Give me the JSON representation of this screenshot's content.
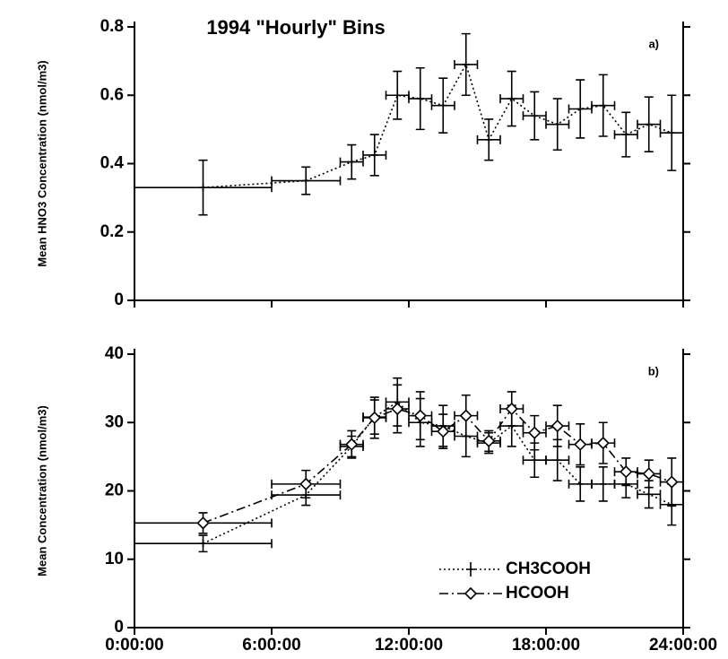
{
  "chart_data": [
    {
      "type": "line",
      "title": "1994 \"Hourly\" Bins",
      "panel_label": "a)",
      "y_label": "Mean HNO3 Concentration (nmol/m3)",
      "x": [
        3,
        7.5,
        9.5,
        10.5,
        11.5,
        12.5,
        13.5,
        14.5,
        15.5,
        16.5,
        17.5,
        18.5,
        19.5,
        20.5,
        21.5,
        22.5,
        23.5
      ],
      "xerr": [
        3,
        1.5,
        0.5,
        0.5,
        0.5,
        0.5,
        0.5,
        0.5,
        0.5,
        0.5,
        0.5,
        0.5,
        0.5,
        0.5,
        0.5,
        0.5,
        0.5
      ],
      "series": [
        {
          "color": "#000000",
          "marker": "plus",
          "dash": "2,3",
          "values": [
            0.33,
            0.35,
            0.405,
            0.425,
            0.6,
            0.59,
            0.57,
            0.69,
            0.47,
            0.59,
            0.54,
            0.515,
            0.56,
            0.57,
            0.485,
            0.515,
            0.49
          ],
          "errors": [
            0.08,
            0.04,
            0.05,
            0.06,
            0.07,
            0.09,
            0.08,
            0.09,
            0.06,
            0.08,
            0.07,
            0.075,
            0.085,
            0.09,
            0.065,
            0.08,
            0.11
          ]
        }
      ],
      "xlim": [
        0,
        24
      ],
      "xticks": [
        {
          "value": 0,
          "label": "0:00:00"
        },
        {
          "value": 6,
          "label": "6:00:00"
        },
        {
          "value": 12,
          "label": "12:00:00"
        },
        {
          "value": 18,
          "label": "18:00:00"
        },
        {
          "value": 24,
          "label": "24:00:00"
        }
      ],
      "ylim": [
        0,
        0.8
      ],
      "yticks": [
        0,
        0.2,
        0.4,
        0.6,
        0.8
      ]
    },
    {
      "type": "line",
      "panel_label": "b)",
      "y_label": "Mean Concentration (nmol/m3)",
      "x": [
        3,
        7.5,
        9.5,
        10.5,
        11.5,
        12.5,
        13.5,
        14.5,
        15.5,
        16.5,
        17.5,
        18.5,
        19.5,
        20.5,
        21.5,
        22.5,
        23.5
      ],
      "xerr": [
        3,
        1.5,
        0.5,
        0.5,
        0.5,
        0.5,
        0.5,
        0.5,
        0.5,
        0.5,
        0.5,
        0.5,
        0.5,
        0.5,
        0.5,
        0.5,
        0.5
      ],
      "series": [
        {
          "name": "CH3COOH",
          "color": "#000000",
          "marker": "plus",
          "dash": "2,3",
          "values": [
            12.3,
            19.4,
            26.5,
            30.8,
            33,
            30,
            29.5,
            28,
            27,
            29.5,
            24.5,
            24.5,
            21,
            21,
            21,
            19.5,
            18
          ],
          "errors": [
            1.2,
            1.5,
            1.5,
            2.5,
            3.5,
            3.5,
            3,
            3,
            1.5,
            3,
            2.5,
            3,
            2.5,
            2.5,
            2,
            2,
            3
          ]
        },
        {
          "name": "HCOOH",
          "color": "#000000",
          "marker": "diamond",
          "dash": "10,4,2,4",
          "values": [
            15.3,
            21,
            26.8,
            30.7,
            32,
            31,
            28.7,
            31,
            27.3,
            32,
            28.5,
            29.5,
            26.8,
            27,
            22.8,
            22.5,
            21.3
          ],
          "errors": [
            1.5,
            2,
            2,
            3,
            3.5,
            3.5,
            2.5,
            3,
            1.5,
            2.5,
            2.5,
            3,
            3,
            3,
            2,
            2,
            3.5
          ]
        }
      ],
      "xlim": [
        0,
        24
      ],
      "xticks": [
        {
          "value": 0,
          "label": "0:00:00"
        },
        {
          "value": 6,
          "label": "6:00:00"
        },
        {
          "value": 12,
          "label": "12:00:00"
        },
        {
          "value": 18,
          "label": "18:00:00"
        },
        {
          "value": 24,
          "label": "24:00:00"
        }
      ],
      "ylim": [
        0,
        40
      ],
      "yticks": [
        0,
        10,
        20,
        30,
        40
      ],
      "legend": "lower right"
    }
  ]
}
